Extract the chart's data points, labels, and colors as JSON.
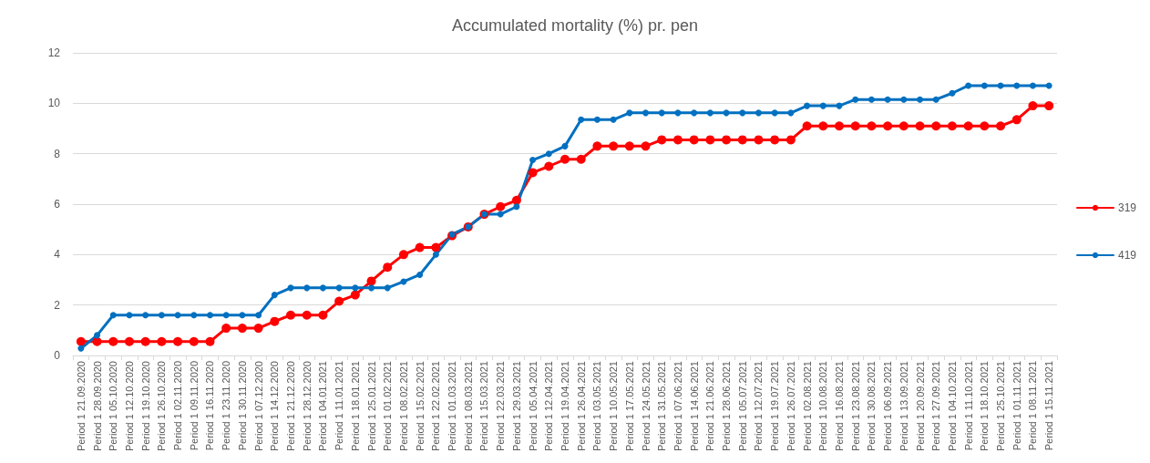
{
  "chart_data": {
    "type": "line",
    "title": "Accumulated mortality (%) pr. pen",
    "categories": [
      "Period 1 21.09.2020",
      "Period 1 28.09.2020",
      "Period 1 05.10.2020",
      "Period 1 12.10.2020",
      "Period 1 19.10.2020",
      "Period 1 26.10.2020",
      "Period 1 02.11.2020",
      "Period 1 09.11.2020",
      "Period 1 16.11.2020",
      "Period 1 23.11.2020",
      "Period 1 30.11.2020",
      "Period 1 07.12.2020",
      "Period 1 14.12.2020",
      "Period 1 21.12.2020",
      "Period 1 28.12.2020",
      "Period 1 04.01.2021",
      "Period 1 11.01.2021",
      "Period 1 18.01.2021",
      "Period 1 25.01.2021",
      "Period 1 01.02.2021",
      "Period 1 08.02.2021",
      "Period 1 15.02.2021",
      "Period 1 22.02.2021",
      "Period 1 01.03.2021",
      "Period 1 08.03.2021",
      "Period 1 15.03.2021",
      "Period 1 22.03.2021",
      "Period 1 29.03.2021",
      "Period 1 05.04.2021",
      "Period 1 12.04.2021",
      "Period 1 19.04.2021",
      "Period 1 26.04.2021",
      "Period 1 03.05.2021",
      "Period 1 10.05.2021",
      "Period 1 17.05.2021",
      "Period 1 24.05.2021",
      "Period 1 31.05.2021",
      "Period 1 07.06.2021",
      "Period 1 14.06.2021",
      "Period 1 21.06.2021",
      "Period 1 28.06.2021",
      "Period 1 05.07.2021",
      "Period 1 12.07.2021",
      "Period 1 19.07.2021",
      "Period 1 26.07.2021",
      "Period 1 02.08.2021",
      "Period 1 10.08.2021",
      "Period 1 16.08.2021",
      "Period 1 23.08.2021",
      "Period 1 30.08.2021",
      "Period 1 06.09.2021",
      "Period 1 13.09.2021",
      "Period 1 20.09.2021",
      "Period 1 27.09.2021",
      "Period 1 04.10.2021",
      "Period 1 11.10.2021",
      "Period 1 18.10.2021",
      "Period 1 25.10.2021",
      "Period 1 01.11.2021",
      "Period 1 08.11.2021",
      "Period 1 15.11.2021"
    ],
    "series": [
      {
        "name": "319",
        "color": "#ff0000",
        "values": [
          0.55,
          0.55,
          0.55,
          0.55,
          0.55,
          0.55,
          0.55,
          0.55,
          0.55,
          1.08,
          1.08,
          1.08,
          1.35,
          1.6,
          1.6,
          1.6,
          2.15,
          2.4,
          2.95,
          3.5,
          4.0,
          4.28,
          4.28,
          4.75,
          5.1,
          5.6,
          5.9,
          6.15,
          7.25,
          7.5,
          7.78,
          7.78,
          8.3,
          8.3,
          8.3,
          8.3,
          8.55,
          8.55,
          8.55,
          8.55,
          8.55,
          8.55,
          8.55,
          8.55,
          8.55,
          9.1,
          9.1,
          9.1,
          9.1,
          9.1,
          9.1,
          9.1,
          9.1,
          9.1,
          9.1,
          9.1,
          9.1,
          9.1,
          9.35,
          9.9,
          9.9
        ]
      },
      {
        "name": "419",
        "color": "#0070c0",
        "values": [
          0.28,
          0.8,
          1.6,
          1.6,
          1.6,
          1.6,
          1.6,
          1.6,
          1.6,
          1.6,
          1.6,
          1.6,
          2.4,
          2.68,
          2.68,
          2.68,
          2.68,
          2.68,
          2.68,
          2.68,
          2.93,
          3.2,
          4.0,
          4.8,
          5.1,
          5.6,
          5.6,
          5.9,
          7.75,
          8.0,
          8.3,
          9.35,
          9.35,
          9.35,
          9.62,
          9.62,
          9.62,
          9.62,
          9.62,
          9.62,
          9.62,
          9.62,
          9.62,
          9.62,
          9.62,
          9.9,
          9.9,
          9.9,
          10.15,
          10.15,
          10.15,
          10.15,
          10.15,
          10.15,
          10.4,
          10.7,
          10.7,
          10.7,
          10.7,
          10.7,
          10.7
        ]
      }
    ],
    "ylim": [
      0,
      12
    ],
    "yticks": [
      0,
      2,
      4,
      6,
      8,
      10,
      12
    ],
    "grid": "y",
    "legend": "right",
    "marker": "circle",
    "line_style": "solid"
  }
}
